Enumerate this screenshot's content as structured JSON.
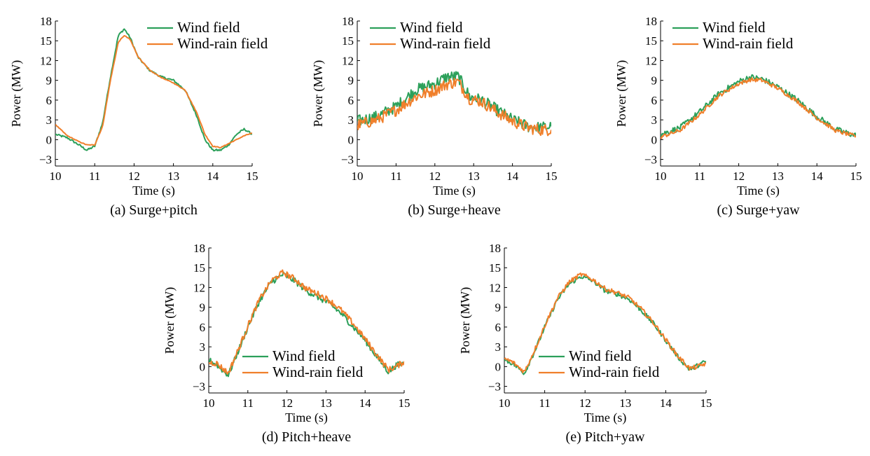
{
  "colors": {
    "wind": "#2ca05a",
    "wind_rain": "#f07f2b",
    "axis": "#000000"
  },
  "chart_data": [
    {
      "type": "line",
      "caption": "(a) Surge+pitch",
      "xlabel": "Time (s)",
      "ylabel": "Power (MW)",
      "xlim": [
        10,
        15
      ],
      "ylim": [
        -4,
        18
      ],
      "xticks": [
        10,
        11,
        12,
        13,
        14,
        15
      ],
      "yticks": [
        -3,
        0,
        3,
        6,
        9,
        12,
        15,
        18
      ],
      "ytick_labels": [
        "−3",
        "0",
        "3",
        "6",
        "9",
        "12",
        "15",
        "18"
      ],
      "legend_position": "top-right",
      "series": [
        {
          "name": "Wind field",
          "color_key": "wind",
          "noise": 0.15,
          "x": [
            10.0,
            10.3,
            10.6,
            10.8,
            11.0,
            11.2,
            11.4,
            11.6,
            11.75,
            11.9,
            12.1,
            12.4,
            12.7,
            13.0,
            13.3,
            13.6,
            13.8,
            14.0,
            14.2,
            14.4,
            14.6,
            14.8,
            15.0
          ],
          "y": [
            0.8,
            0.3,
            -0.8,
            -1.6,
            -1.0,
            2.5,
            9.5,
            15.8,
            16.8,
            15.5,
            12.5,
            10.5,
            9.5,
            9.0,
            7.5,
            3.5,
            0.0,
            -1.6,
            -1.6,
            -0.8,
            0.8,
            1.6,
            0.8
          ]
        },
        {
          "name": "Wind-rain field",
          "color_key": "wind_rain",
          "noise": 0.05,
          "x": [
            10.0,
            10.3,
            10.6,
            10.8,
            11.0,
            11.2,
            11.4,
            11.6,
            11.75,
            11.9,
            12.1,
            12.4,
            12.7,
            13.0,
            13.3,
            13.6,
            13.8,
            14.0,
            14.2,
            14.4,
            14.6,
            14.8,
            15.0
          ],
          "y": [
            2.3,
            0.6,
            -0.3,
            -0.8,
            -0.8,
            2.0,
            9.0,
            14.8,
            15.8,
            15.2,
            12.6,
            10.5,
            9.4,
            8.6,
            7.5,
            4.0,
            0.8,
            -1.0,
            -1.2,
            -0.6,
            0.0,
            0.6,
            1.0
          ]
        }
      ]
    },
    {
      "type": "line",
      "caption": "(b) Surge+heave",
      "xlabel": "Time (s)",
      "ylabel": "Power (MW)",
      "xlim": [
        10,
        15
      ],
      "ylim": [
        -4,
        18
      ],
      "xticks": [
        10,
        11,
        12,
        13,
        14,
        15
      ],
      "yticks": [
        -3,
        0,
        3,
        6,
        9,
        12,
        15,
        18
      ],
      "ytick_labels": [
        "−3",
        "0",
        "3",
        "6",
        "9",
        "12",
        "15",
        "18"
      ],
      "legend_position": "top-right",
      "series": [
        {
          "name": "Wind field",
          "color_key": "wind",
          "noise": 0.9,
          "x": [
            10.0,
            10.5,
            11.0,
            11.5,
            12.0,
            12.3,
            12.6,
            12.9,
            13.2,
            13.6,
            14.0,
            14.4,
            14.7,
            15.0
          ],
          "y": [
            2.8,
            3.5,
            5.0,
            7.5,
            8.5,
            9.5,
            9.6,
            6.5,
            6.0,
            4.5,
            3.0,
            2.0,
            1.8,
            2.0
          ]
        },
        {
          "name": "Wind-rain field",
          "color_key": "wind_rain",
          "noise": 0.9,
          "x": [
            10.0,
            10.5,
            11.0,
            11.5,
            12.0,
            12.3,
            12.6,
            12.9,
            13.2,
            13.6,
            14.0,
            14.4,
            14.7,
            15.0
          ],
          "y": [
            2.2,
            3.0,
            4.5,
            6.5,
            7.5,
            8.4,
            8.8,
            6.2,
            5.8,
            4.2,
            2.8,
            1.8,
            1.5,
            1.5
          ]
        }
      ]
    },
    {
      "type": "line",
      "caption": "(c) Surge+yaw",
      "xlabel": "Time (s)",
      "ylabel": "Power (MW)",
      "xlim": [
        10,
        15
      ],
      "ylim": [
        -4,
        18
      ],
      "xticks": [
        10,
        11,
        12,
        13,
        14,
        15
      ],
      "yticks": [
        -3,
        0,
        3,
        6,
        9,
        12,
        15,
        18
      ],
      "ytick_labels": [
        "−3",
        "0",
        "3",
        "6",
        "9",
        "12",
        "15",
        "18"
      ],
      "legend_position": "top-right",
      "series": [
        {
          "name": "Wind field",
          "color_key": "wind",
          "noise": 0.45,
          "x": [
            10.0,
            10.5,
            11.0,
            11.5,
            12.0,
            12.3,
            12.6,
            13.0,
            13.5,
            14.0,
            14.5,
            15.0
          ],
          "y": [
            0.8,
            1.8,
            4.2,
            7.0,
            8.8,
            9.5,
            9.2,
            8.0,
            6.0,
            3.5,
            1.5,
            0.6
          ]
        },
        {
          "name": "Wind-rain field",
          "color_key": "wind_rain",
          "noise": 0.3,
          "x": [
            10.0,
            10.5,
            11.0,
            11.5,
            12.0,
            12.3,
            12.6,
            13.0,
            13.5,
            14.0,
            14.5,
            15.0
          ],
          "y": [
            0.4,
            1.4,
            3.8,
            6.7,
            8.5,
            9.1,
            9.0,
            7.8,
            5.8,
            3.3,
            1.3,
            0.5
          ]
        }
      ]
    },
    {
      "type": "line",
      "caption": "(d) Pitch+heave",
      "xlabel": "Time (s)",
      "ylabel": "Power (MW)",
      "xlim": [
        10,
        15
      ],
      "ylim": [
        -4,
        18
      ],
      "xticks": [
        10,
        11,
        12,
        13,
        14,
        15
      ],
      "yticks": [
        -3,
        0,
        3,
        6,
        9,
        12,
        15,
        18
      ],
      "ytick_labels": [
        "−3",
        "0",
        "3",
        "6",
        "9",
        "12",
        "15",
        "18"
      ],
      "legend_position": "bottom-center",
      "series": [
        {
          "name": "Wind field",
          "color_key": "wind",
          "noise": 0.45,
          "x": [
            10.0,
            10.2,
            10.5,
            10.8,
            11.0,
            11.3,
            11.6,
            11.9,
            12.2,
            12.5,
            12.8,
            13.1,
            13.4,
            13.7,
            14.0,
            14.3,
            14.6,
            14.8,
            15.0
          ],
          "y": [
            1.0,
            0.3,
            -1.3,
            3.0,
            6.0,
            10.0,
            12.8,
            14.0,
            13.0,
            11.5,
            10.5,
            9.5,
            8.0,
            6.0,
            4.0,
            1.5,
            -0.8,
            0.2,
            0.5
          ]
        },
        {
          "name": "Wind-rain field",
          "color_key": "wind_rain",
          "noise": 0.45,
          "x": [
            10.0,
            10.2,
            10.5,
            10.8,
            11.0,
            11.3,
            11.6,
            11.9,
            12.2,
            12.5,
            12.8,
            13.1,
            13.4,
            13.7,
            14.0,
            14.3,
            14.6,
            14.8,
            15.0
          ],
          "y": [
            0.6,
            0.5,
            -1.0,
            3.2,
            6.2,
            10.2,
            13.0,
            14.3,
            13.3,
            11.8,
            11.0,
            10.0,
            8.5,
            6.5,
            4.2,
            1.8,
            -0.5,
            0.0,
            0.8
          ]
        }
      ]
    },
    {
      "type": "line",
      "caption": "(e) Pitch+yaw",
      "xlabel": "Time (s)",
      "ylabel": "Power (MW)",
      "xlim": [
        10,
        15
      ],
      "ylim": [
        -4,
        18
      ],
      "xticks": [
        10,
        11,
        12,
        13,
        14,
        15
      ],
      "yticks": [
        -3,
        0,
        3,
        6,
        9,
        12,
        15,
        18
      ],
      "ytick_labels": [
        "−3",
        "0",
        "3",
        "6",
        "9",
        "12",
        "15",
        "18"
      ],
      "legend_position": "bottom-center",
      "series": [
        {
          "name": "Wind field",
          "color_key": "wind",
          "noise": 0.35,
          "x": [
            10.0,
            10.2,
            10.5,
            10.8,
            11.0,
            11.3,
            11.6,
            11.9,
            12.2,
            12.5,
            12.8,
            13.1,
            13.4,
            13.7,
            14.0,
            14.3,
            14.6,
            14.8,
            15.0
          ],
          "y": [
            1.0,
            0.5,
            -1.0,
            3.0,
            6.0,
            10.0,
            12.5,
            13.7,
            13.0,
            11.5,
            11.0,
            10.2,
            8.5,
            6.5,
            4.0,
            1.5,
            -0.5,
            0.2,
            0.8
          ]
        },
        {
          "name": "Wind-rain field",
          "color_key": "wind_rain",
          "noise": 0.35,
          "x": [
            10.0,
            10.2,
            10.5,
            10.8,
            11.0,
            11.3,
            11.6,
            11.9,
            12.2,
            12.5,
            12.8,
            13.1,
            13.4,
            13.7,
            14.0,
            14.3,
            14.6,
            14.8,
            15.0
          ],
          "y": [
            1.2,
            0.7,
            -0.8,
            3.2,
            6.2,
            10.2,
            12.8,
            14.0,
            13.2,
            11.8,
            11.2,
            10.4,
            8.7,
            6.6,
            4.1,
            1.6,
            -0.3,
            0.0,
            0.5
          ]
        }
      ]
    }
  ]
}
